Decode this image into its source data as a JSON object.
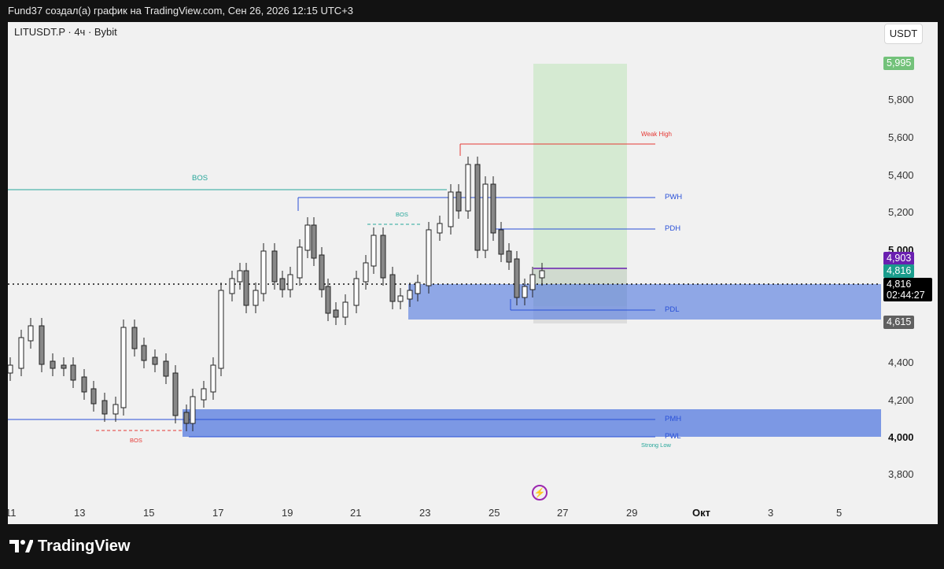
{
  "header": {
    "caption": "Fund37 создал(а) график на TradingView.com, Сен 26, 2026 12:15 UTC+3"
  },
  "chart": {
    "symbol": "LITUSDT.P · 4ч · Bybit",
    "currency_button": "USDT",
    "price_axis": [
      "5,800",
      "5,600",
      "5,400",
      "5,200",
      "5,000",
      "4,400",
      "4,200",
      "4,000",
      "3,800"
    ],
    "price_axis_bold": [
      "5,000",
      "4,000"
    ],
    "time_axis": [
      "11",
      "13",
      "15",
      "17",
      "19",
      "21",
      "23",
      "25",
      "27",
      "29",
      "Окт",
      "3",
      "5"
    ],
    "badges": {
      "target": "5,995",
      "entry": "4,903",
      "last": "4,816",
      "current_price": "4,816",
      "countdown": "02:44:27",
      "stop": "4,615"
    },
    "levels": {
      "weak_high": "Weak High",
      "pwh": "PWH",
      "pdh": "PDH",
      "pdl": "PDL",
      "pmh": "PMH",
      "pwl": "PWL",
      "strong_low": "Strong Low",
      "bos_top": "BOS",
      "bos_mid": "BOS",
      "bos_low": "BOS"
    },
    "colors": {
      "up": "#ffffff",
      "down": "#888888",
      "target_zone": "#cfe8cc",
      "stop_zone": "#cfcfcf",
      "demand_zone": "#5b7fe0",
      "bos_teal": "#26a69a",
      "weak_high_red": "#e53935",
      "liquidity_blue": "#2950d8",
      "entry_purple": "#6a1fb0"
    }
  },
  "branding": {
    "logo_text": "TradingView",
    "logo_icon": "tradingview-logo-icon"
  }
}
